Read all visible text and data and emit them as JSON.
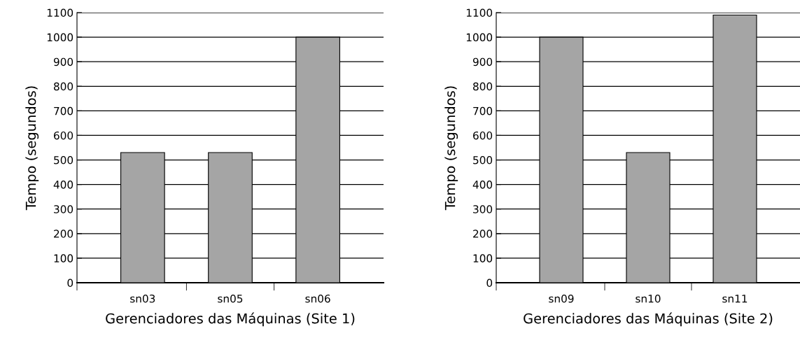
{
  "chart_data": [
    {
      "type": "bar",
      "xlabel": "Gerenciadores das Máquinas (Site 1)",
      "ylabel": "Tempo (segundos)",
      "categories": [
        "sn03",
        "sn05",
        "sn06"
      ],
      "values": [
        530,
        530,
        1000
      ],
      "color": "#a5a5a5",
      "ylim": [
        0,
        1100
      ],
      "yticks": [
        0,
        100,
        200,
        300,
        400,
        500,
        600,
        700,
        800,
        900,
        1000,
        1100
      ],
      "grid": "y"
    },
    {
      "type": "bar",
      "xlabel": "Gerenciadores das Máquinas (Site 2)",
      "ylabel": "Tempo (segundos)",
      "categories": [
        "sn09",
        "sn10",
        "sn11"
      ],
      "values": [
        1000,
        530,
        1090
      ],
      "color": "#a5a5a5",
      "ylim": [
        0,
        1100
      ],
      "yticks": [
        0,
        100,
        200,
        300,
        400,
        500,
        600,
        700,
        800,
        900,
        1000,
        1100
      ],
      "grid": "y"
    }
  ]
}
